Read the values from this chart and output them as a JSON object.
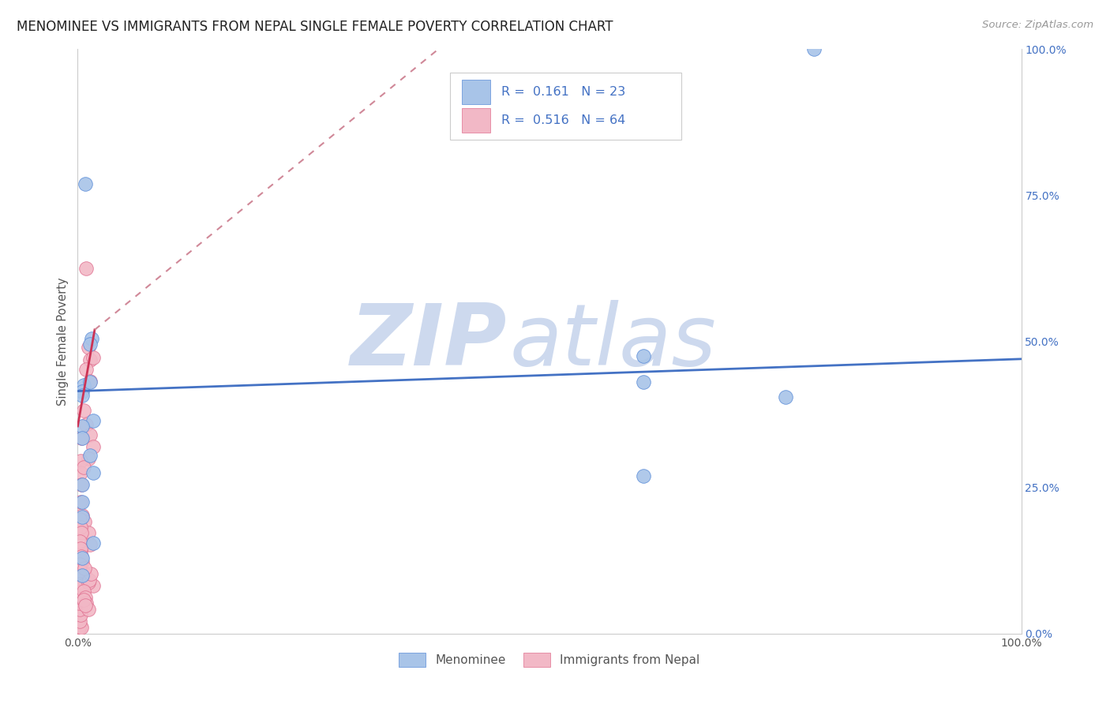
{
  "title": "MENOMINEE VS IMMIGRANTS FROM NEPAL SINGLE FEMALE POVERTY CORRELATION CHART",
  "source": "Source: ZipAtlas.com",
  "ylabel": "Single Female Poverty",
  "legend_label1": "Menominee",
  "legend_label2": "Immigrants from Nepal",
  "R1": "0.161",
  "N1": "23",
  "R2": "0.516",
  "N2": "64",
  "color_blue": "#a8c4e8",
  "color_pink": "#f2b8c6",
  "color_blue_edge": "#5b8dd9",
  "color_pink_edge": "#e07090",
  "color_line_blue": "#4472c4",
  "color_line_pink_solid": "#cc3355",
  "color_line_pink_dash": "#d08898",
  "menominee_data": [
    [
      0.78,
      1.0
    ],
    [
      0.008,
      0.77
    ],
    [
      0.6,
      0.475
    ],
    [
      0.6,
      0.43
    ],
    [
      0.75,
      0.405
    ],
    [
      0.6,
      0.27
    ],
    [
      0.015,
      0.505
    ],
    [
      0.013,
      0.495
    ],
    [
      0.006,
      0.425
    ],
    [
      0.005,
      0.415
    ],
    [
      0.005,
      0.408
    ],
    [
      0.016,
      0.365
    ],
    [
      0.005,
      0.355
    ],
    [
      0.005,
      0.335
    ],
    [
      0.013,
      0.305
    ],
    [
      0.016,
      0.275
    ],
    [
      0.005,
      0.255
    ],
    [
      0.005,
      0.225
    ],
    [
      0.005,
      0.2
    ],
    [
      0.016,
      0.155
    ],
    [
      0.005,
      0.13
    ],
    [
      0.005,
      0.1
    ],
    [
      0.013,
      0.43
    ]
  ],
  "nepal_data": [
    [
      0.009,
      0.625
    ],
    [
      0.011,
      0.49
    ],
    [
      0.013,
      0.468
    ],
    [
      0.009,
      0.452
    ],
    [
      0.013,
      0.432
    ],
    [
      0.016,
      0.472
    ],
    [
      0.006,
      0.382
    ],
    [
      0.009,
      0.358
    ],
    [
      0.013,
      0.34
    ],
    [
      0.016,
      0.32
    ],
    [
      0.011,
      0.3
    ],
    [
      0.004,
      0.335
    ],
    [
      0.003,
      0.295
    ],
    [
      0.003,
      0.275
    ],
    [
      0.004,
      0.255
    ],
    [
      0.006,
      0.285
    ],
    [
      0.003,
      0.225
    ],
    [
      0.005,
      0.202
    ],
    [
      0.007,
      0.192
    ],
    [
      0.011,
      0.172
    ],
    [
      0.013,
      0.152
    ],
    [
      0.003,
      0.142
    ],
    [
      0.005,
      0.122
    ],
    [
      0.007,
      0.102
    ],
    [
      0.011,
      0.092
    ],
    [
      0.016,
      0.082
    ],
    [
      0.002,
      0.195
    ],
    [
      0.003,
      0.182
    ],
    [
      0.004,
      0.172
    ],
    [
      0.002,
      0.158
    ],
    [
      0.003,
      0.145
    ],
    [
      0.004,
      0.132
    ],
    [
      0.002,
      0.118
    ],
    [
      0.002,
      0.108
    ],
    [
      0.003,
      0.095
    ],
    [
      0.002,
      0.085
    ],
    [
      0.001,
      0.075
    ],
    [
      0.002,
      0.065
    ],
    [
      0.001,
      0.055
    ],
    [
      0.002,
      0.045
    ],
    [
      0.003,
      0.035
    ],
    [
      0.001,
      0.025
    ],
    [
      0.001,
      0.015
    ],
    [
      0.002,
      0.012
    ],
    [
      0.003,
      0.012
    ],
    [
      0.001,
      0.01
    ],
    [
      0.004,
      0.01
    ],
    [
      0.002,
      0.022
    ],
    [
      0.003,
      0.032
    ],
    [
      0.002,
      0.042
    ],
    [
      0.001,
      0.052
    ],
    [
      0.003,
      0.062
    ],
    [
      0.004,
      0.072
    ],
    [
      0.005,
      0.082
    ],
    [
      0.011,
      0.088
    ],
    [
      0.012,
      0.092
    ],
    [
      0.014,
      0.102
    ],
    [
      0.007,
      0.112
    ],
    [
      0.006,
      0.072
    ],
    [
      0.008,
      0.062
    ],
    [
      0.009,
      0.052
    ],
    [
      0.011,
      0.042
    ],
    [
      0.006,
      0.058
    ],
    [
      0.008,
      0.048
    ]
  ],
  "blue_line": [
    [
      0.0,
      0.415
    ],
    [
      1.0,
      0.47
    ]
  ],
  "pink_solid_line": [
    [
      0.0,
      0.355
    ],
    [
      0.018,
      0.52
    ]
  ],
  "pink_dash_line": [
    [
      0.018,
      0.52
    ],
    [
      0.42,
      1.05
    ]
  ],
  "background_color": "#ffffff",
  "grid_color": "#e0e0e0",
  "watermark_zip": "ZIP",
  "watermark_atlas": "atlas",
  "watermark_color": "#cdd9ee"
}
